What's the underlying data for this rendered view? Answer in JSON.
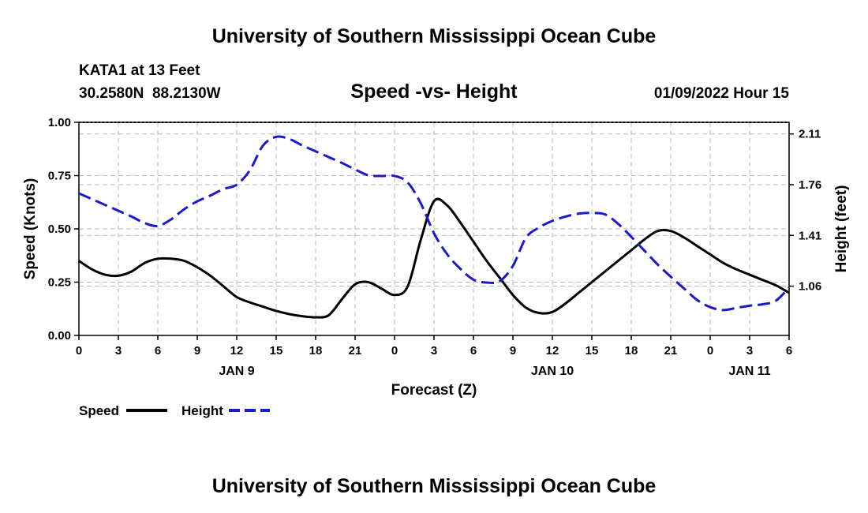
{
  "header": {
    "title": "University of Southern Mississippi Ocean Cube",
    "station": "KATA1 at 13 Feet",
    "coords": "30.2580N  88.2130W",
    "subtitle": "Speed -vs- Height",
    "datetime": "01/09/2022 Hour 15",
    "footer_title": "University of Southern Mississippi Ocean Cube"
  },
  "legend": {
    "speed_label": "Speed",
    "height_label": "Height"
  },
  "colors": {
    "speed": "#000000",
    "height": "#1a1acc",
    "grid": "#bbbbbb"
  },
  "chart_data": {
    "type": "line",
    "title": "Speed -vs- Height",
    "xlabel": "Forecast (Z)",
    "ylabel": "Speed (Knots)",
    "y2label": "Height (feet)",
    "xlim": [
      0,
      54
    ],
    "ylim": [
      0,
      1
    ],
    "y2lim": [
      0.72,
      2.19
    ],
    "x_ticks": [
      0,
      3,
      6,
      9,
      12,
      15,
      18,
      21,
      24,
      27,
      30,
      33,
      36,
      39,
      42,
      45,
      48,
      51,
      54
    ],
    "x_tick_labels": [
      "0",
      "3",
      "6",
      "9",
      "12",
      "15",
      "18",
      "21",
      "0",
      "3",
      "6",
      "9",
      "12",
      "15",
      "18",
      "21",
      "0",
      "3",
      "6"
    ],
    "y_ticks": [
      0,
      0.25,
      0.5,
      0.75,
      1.0
    ],
    "y_tick_labels": [
      "0.00",
      "0.25",
      "0.50",
      "0.75",
      "1.00"
    ],
    "y2_ticks": [
      1.06,
      1.41,
      1.76,
      2.11
    ],
    "y2_tick_labels": [
      "1.06",
      "1.41",
      "1.76",
      "2.11"
    ],
    "date_labels": [
      {
        "x": 12,
        "label": "JAN 9"
      },
      {
        "x": 36,
        "label": "JAN 10"
      },
      {
        "x": 51,
        "label": "JAN 11"
      }
    ],
    "series": [
      {
        "name": "Speed",
        "axis": "left",
        "x": [
          0,
          1,
          2,
          3,
          4,
          5,
          6,
          7,
          8,
          9,
          10,
          11,
          12,
          13,
          14,
          15,
          16,
          17,
          18,
          19,
          20,
          21,
          22,
          23,
          24,
          25,
          26,
          27,
          28,
          29,
          30,
          31,
          32,
          33,
          34,
          35,
          36,
          37,
          38,
          39,
          40,
          41,
          42,
          43,
          44,
          45,
          46,
          47,
          48,
          49,
          50,
          51,
          52,
          53,
          54
        ],
        "values": [
          0.35,
          0.31,
          0.285,
          0.28,
          0.3,
          0.34,
          0.36,
          0.36,
          0.35,
          0.32,
          0.28,
          0.23,
          0.18,
          0.155,
          0.135,
          0.115,
          0.1,
          0.09,
          0.085,
          0.095,
          0.17,
          0.24,
          0.25,
          0.22,
          0.19,
          0.23,
          0.45,
          0.63,
          0.61,
          0.53,
          0.44,
          0.35,
          0.27,
          0.19,
          0.13,
          0.105,
          0.11,
          0.15,
          0.2,
          0.25,
          0.3,
          0.35,
          0.4,
          0.45,
          0.49,
          0.49,
          0.46,
          0.42,
          0.38,
          0.34,
          0.31,
          0.285,
          0.26,
          0.235,
          0.2
        ]
      },
      {
        "name": "Height",
        "axis": "right",
        "x": [
          0,
          1,
          2,
          3,
          4,
          5,
          6,
          7,
          8,
          9,
          10,
          11,
          12,
          13,
          14,
          15,
          16,
          17,
          18,
          19,
          20,
          21,
          22,
          23,
          24,
          25,
          26,
          27,
          28,
          29,
          30,
          31,
          32,
          33,
          34,
          35,
          36,
          37,
          38,
          39,
          40,
          41,
          42,
          43,
          44,
          45,
          46,
          47,
          48,
          49,
          50,
          51,
          52,
          53,
          54
        ],
        "values": [
          1.7,
          1.66,
          1.62,
          1.58,
          1.54,
          1.495,
          1.475,
          1.52,
          1.59,
          1.645,
          1.685,
          1.73,
          1.76,
          1.86,
          2.03,
          2.09,
          2.075,
          2.03,
          1.99,
          1.95,
          1.91,
          1.865,
          1.825,
          1.82,
          1.82,
          1.775,
          1.63,
          1.425,
          1.28,
          1.18,
          1.105,
          1.085,
          1.095,
          1.2,
          1.395,
          1.465,
          1.51,
          1.54,
          1.56,
          1.565,
          1.555,
          1.49,
          1.4,
          1.305,
          1.21,
          1.125,
          1.045,
          0.965,
          0.915,
          0.895,
          0.91,
          0.925,
          0.935,
          0.96,
          1.05
        ]
      }
    ]
  }
}
